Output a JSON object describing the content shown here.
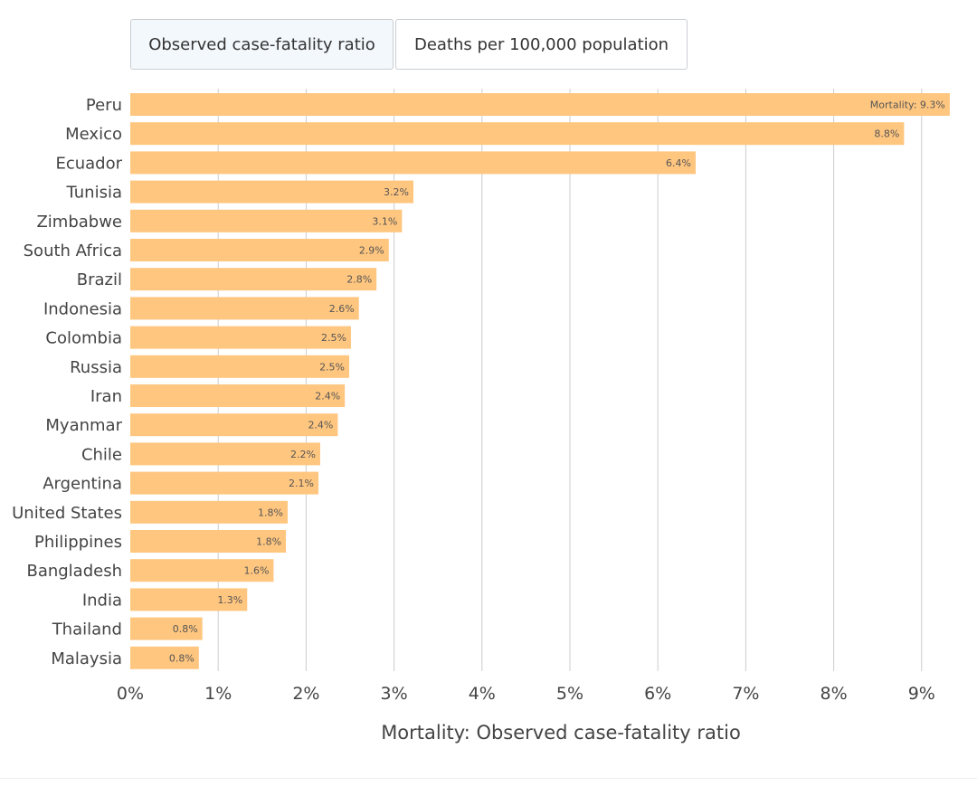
{
  "tabs": {
    "active_label": "Observed case-fatality ratio",
    "inactive_label": "Deaths per 100,000 population"
  },
  "colors": {
    "bar": "#ffc67f",
    "grid": "#cccccc",
    "text": "#444444",
    "label_text": "#555555"
  },
  "chart_data": {
    "type": "bar",
    "orientation": "horizontal",
    "title": "",
    "xlabel": "Mortality: Observed case-fatality ratio",
    "ylabel": "",
    "xlim": [
      0,
      9.4
    ],
    "ticks": [
      0,
      1,
      2,
      3,
      4,
      5,
      6,
      7,
      8,
      9
    ],
    "tick_labels": [
      "0%",
      "1%",
      "2%",
      "3%",
      "4%",
      "5%",
      "6%",
      "7%",
      "8%",
      "9%"
    ],
    "grid": true,
    "categories": [
      "Peru",
      "Mexico",
      "Ecuador",
      "Tunisia",
      "Zimbabwe",
      "South Africa",
      "Brazil",
      "Indonesia",
      "Colombia",
      "Russia",
      "Iran",
      "Myanmar",
      "Chile",
      "Argentina",
      "United States",
      "Philippines",
      "Bangladesh",
      "India",
      "Thailand",
      "Malaysia"
    ],
    "values": [
      9.32,
      8.8,
      6.43,
      3.22,
      3.09,
      2.94,
      2.8,
      2.6,
      2.51,
      2.49,
      2.44,
      2.36,
      2.16,
      2.14,
      1.79,
      1.77,
      1.63,
      1.33,
      0.82,
      0.78
    ],
    "data_labels": [
      "Mortality: 9.3%",
      "8.8%",
      "6.4%",
      "3.2%",
      "3.1%",
      "2.9%",
      "2.8%",
      "2.6%",
      "2.5%",
      "2.5%",
      "2.4%",
      "2.4%",
      "2.2%",
      "2.1%",
      "1.8%",
      "1.8%",
      "1.6%",
      "1.3%",
      "0.8%",
      "0.8%"
    ]
  }
}
